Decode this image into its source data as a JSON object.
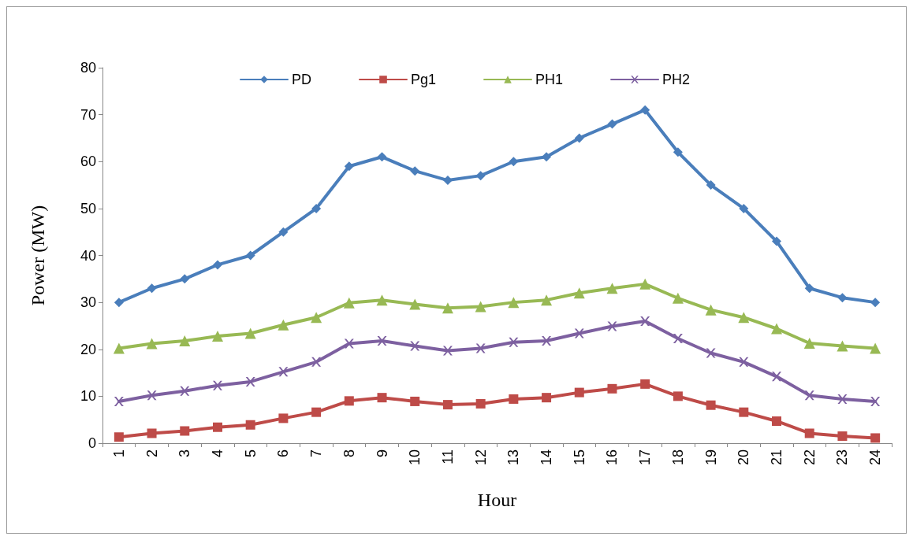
{
  "chart_data": {
    "type": "line",
    "xlabel": "Hour",
    "ylabel": "Power (MW)",
    "categories": [
      "1",
      "2",
      "3",
      "4",
      "5",
      "6",
      "7",
      "8",
      "9",
      "10",
      "11",
      "12",
      "13",
      "14",
      "15",
      "16",
      "17",
      "18",
      "19",
      "20",
      "21",
      "22",
      "23",
      "24"
    ],
    "series": [
      {
        "name": "PD",
        "color": "#4a7ebb",
        "marker": "diamond",
        "values": [
          30,
          33,
          35,
          38,
          40,
          45,
          50,
          59,
          61,
          58,
          56,
          57,
          60,
          61,
          65,
          68,
          71,
          62,
          55,
          50,
          43,
          33,
          31,
          30
        ]
      },
      {
        "name": "Pg1",
        "color": "#be4b48",
        "marker": "square",
        "values": [
          1.3,
          2.1,
          2.6,
          3.4,
          3.9,
          5.3,
          6.6,
          9.0,
          9.7,
          8.9,
          8.2,
          8.4,
          9.4,
          9.7,
          10.8,
          11.6,
          12.6,
          10.0,
          8.1,
          6.6,
          4.7,
          2.1,
          1.5,
          1.1
        ]
      },
      {
        "name": "PH1",
        "color": "#98b954",
        "marker": "triangle",
        "values": [
          20.2,
          21.2,
          21.8,
          22.8,
          23.4,
          25.2,
          26.8,
          29.9,
          30.5,
          29.6,
          28.8,
          29.1,
          30.0,
          30.5,
          32.0,
          33.0,
          33.9,
          30.9,
          28.4,
          26.8,
          24.4,
          21.3,
          20.7,
          20.2
        ]
      },
      {
        "name": "PH2",
        "color": "#7d60a0",
        "marker": "cross",
        "values": [
          8.9,
          10.2,
          11.1,
          12.3,
          13.1,
          15.2,
          17.3,
          21.2,
          21.8,
          20.7,
          19.7,
          20.2,
          21.5,
          21.8,
          23.4,
          24.9,
          26.0,
          22.3,
          19.2,
          17.3,
          14.2,
          10.2,
          9.4,
          8.9
        ]
      }
    ],
    "ylim": [
      0,
      80
    ],
    "yticks": [
      0,
      10,
      20,
      30,
      40,
      50,
      60,
      70,
      80
    ],
    "grid": false,
    "legend": "top",
    "line_style": "solid"
  }
}
